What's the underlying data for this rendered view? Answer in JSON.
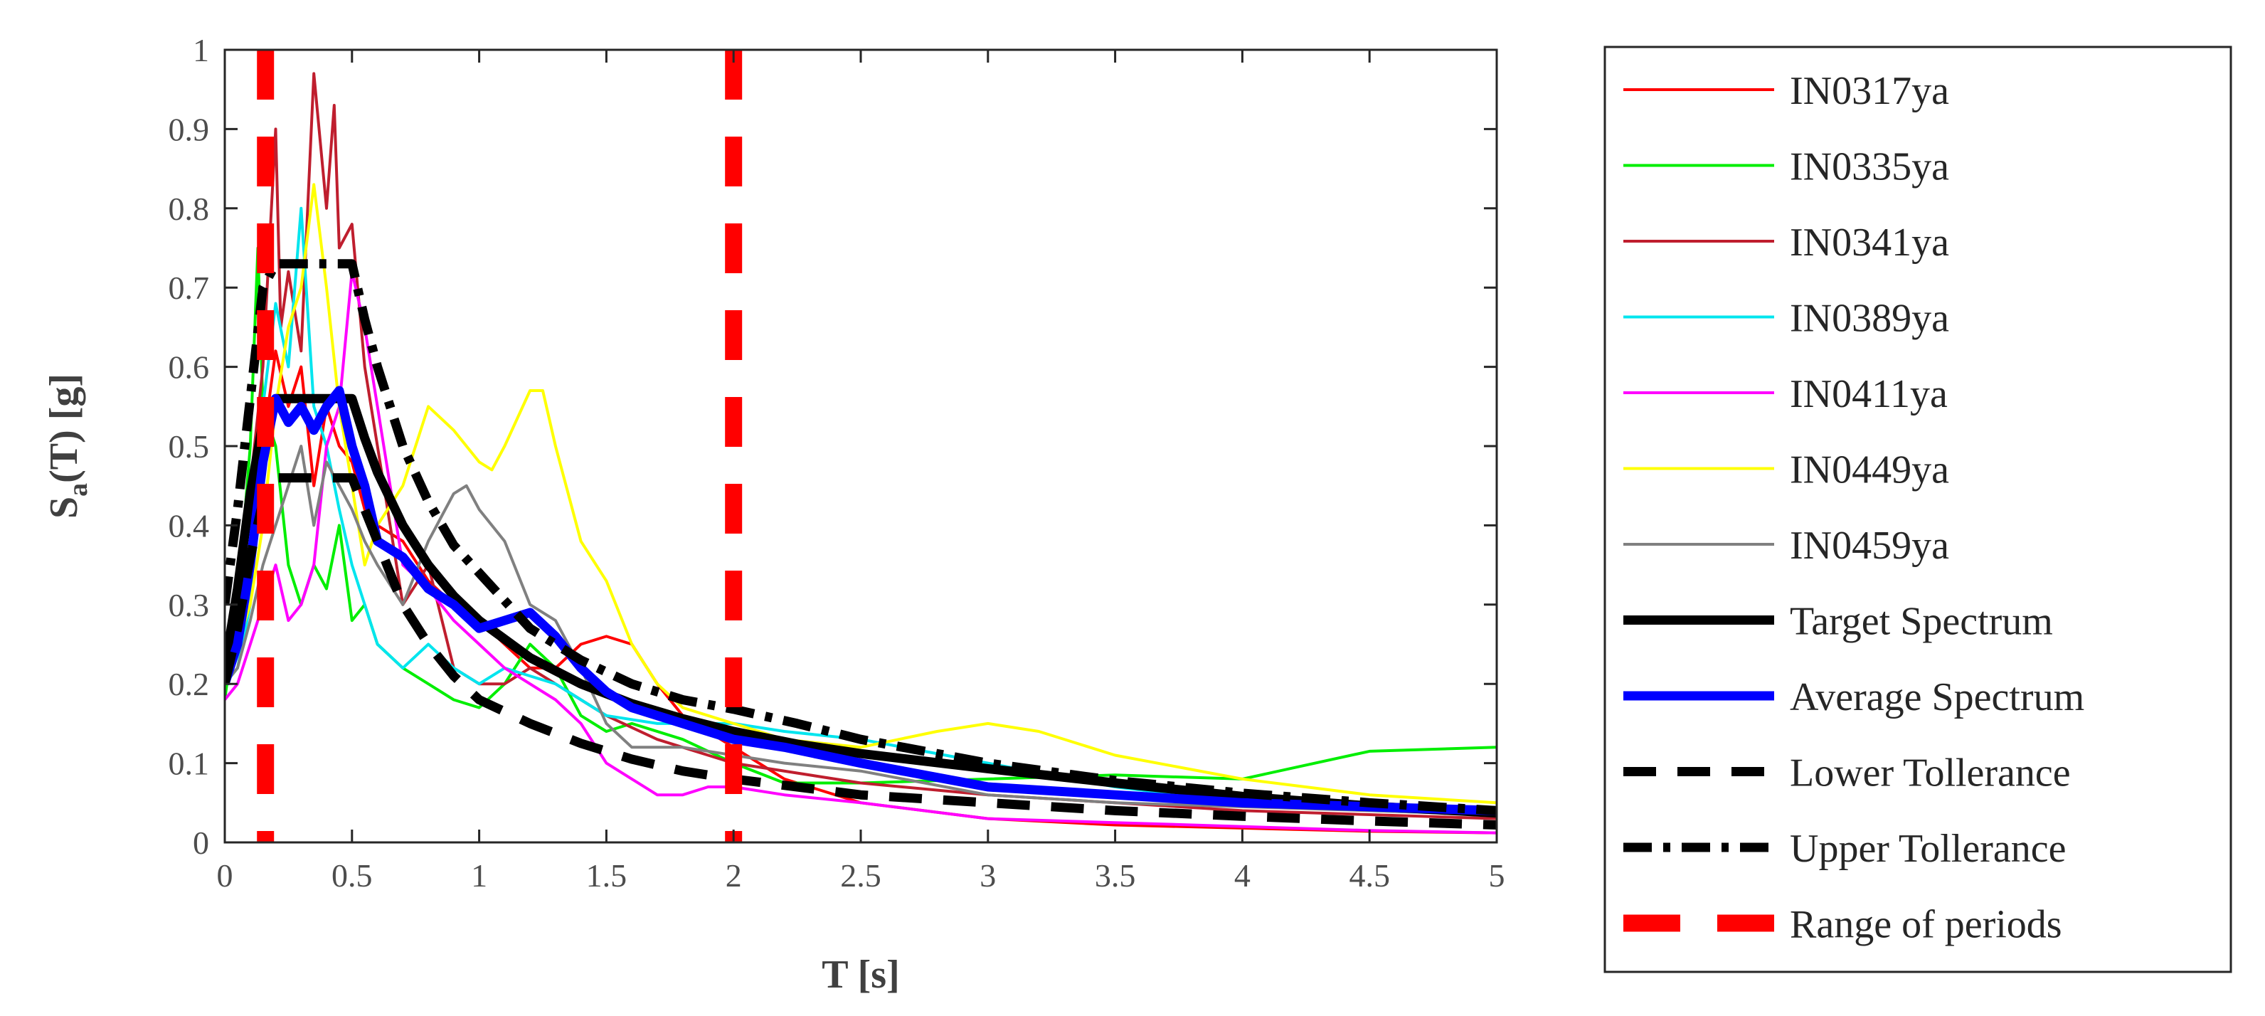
{
  "chart_data": {
    "type": "line",
    "xlabel": "T [s]",
    "ylabel_main": "S",
    "ylabel_sub": "a",
    "ylabel_rest": "(T) [g]",
    "xlim": [
      0,
      5
    ],
    "ylim": [
      0,
      1
    ],
    "x_ticks": [
      0,
      0.5,
      1,
      1.5,
      2,
      2.5,
      3,
      3.5,
      4,
      4.5,
      5
    ],
    "x_tick_labels": [
      "0",
      "0.5",
      "1",
      "1.5",
      "2",
      "2.5",
      "3",
      "3.5",
      "4",
      "4.5",
      "5"
    ],
    "y_ticks": [
      0,
      0.1,
      0.2,
      0.3,
      0.4,
      0.5,
      0.6,
      0.7,
      0.8,
      0.9,
      1
    ],
    "y_tick_labels": [
      "0",
      "0.1",
      "0.2",
      "0.3",
      "0.4",
      "0.5",
      "0.6",
      "0.7",
      "0.8",
      "0.9",
      "1"
    ],
    "grid": false,
    "legend_position": "outside-right",
    "series": [
      {
        "name": "IN0317ya",
        "color": "#ff0000",
        "style": "solid",
        "width": "thin",
        "x": [
          0,
          0.05,
          0.1,
          0.15,
          0.2,
          0.25,
          0.3,
          0.35,
          0.4,
          0.45,
          0.5,
          0.55,
          0.6,
          0.7,
          0.8,
          0.9,
          1.0,
          1.1,
          1.2,
          1.3,
          1.4,
          1.5,
          1.6,
          1.7,
          1.8,
          2.0,
          2.2,
          2.5,
          3.0,
          3.5,
          4.0,
          4.5,
          5.0
        ],
        "y": [
          0.2,
          0.25,
          0.35,
          0.5,
          0.62,
          0.55,
          0.6,
          0.45,
          0.55,
          0.5,
          0.48,
          0.42,
          0.4,
          0.38,
          0.33,
          0.3,
          0.28,
          0.25,
          0.22,
          0.22,
          0.25,
          0.26,
          0.25,
          0.2,
          0.16,
          0.12,
          0.08,
          0.05,
          0.03,
          0.022,
          0.018,
          0.014,
          0.012
        ]
      },
      {
        "name": "IN0335ya",
        "color": "#00ee00",
        "style": "solid",
        "width": "thin",
        "x": [
          0,
          0.05,
          0.1,
          0.13,
          0.15,
          0.2,
          0.25,
          0.3,
          0.35,
          0.4,
          0.45,
          0.5,
          0.55,
          0.6,
          0.7,
          0.8,
          0.9,
          1.0,
          1.1,
          1.2,
          1.3,
          1.4,
          1.5,
          1.6,
          1.8,
          2.0,
          2.2,
          2.5,
          3.0,
          3.5,
          4.0,
          4.5,
          5.0
        ],
        "y": [
          0.18,
          0.3,
          0.5,
          0.75,
          0.55,
          0.5,
          0.35,
          0.3,
          0.35,
          0.32,
          0.4,
          0.28,
          0.3,
          0.25,
          0.22,
          0.2,
          0.18,
          0.17,
          0.2,
          0.25,
          0.22,
          0.16,
          0.14,
          0.15,
          0.13,
          0.1,
          0.075,
          0.075,
          0.08,
          0.085,
          0.08,
          0.115,
          0.12
        ]
      },
      {
        "name": "IN0341ya",
        "color": "#bf1e2e",
        "style": "solid",
        "width": "thin",
        "x": [
          0,
          0.05,
          0.1,
          0.15,
          0.2,
          0.22,
          0.25,
          0.3,
          0.35,
          0.4,
          0.43,
          0.45,
          0.5,
          0.55,
          0.6,
          0.7,
          0.8,
          0.9,
          1.0,
          1.1,
          1.2,
          1.3,
          1.4,
          1.5,
          1.7,
          2.0,
          2.5,
          3.0,
          3.5,
          4.0,
          4.5,
          5.0
        ],
        "y": [
          0.2,
          0.3,
          0.45,
          0.6,
          0.9,
          0.65,
          0.72,
          0.62,
          0.97,
          0.8,
          0.93,
          0.75,
          0.78,
          0.6,
          0.5,
          0.3,
          0.35,
          0.22,
          0.2,
          0.2,
          0.22,
          0.2,
          0.18,
          0.16,
          0.13,
          0.1,
          0.075,
          0.06,
          0.05,
          0.04,
          0.035,
          0.03
        ]
      },
      {
        "name": "IN0389ya",
        "color": "#00e5ee",
        "style": "solid",
        "width": "thin",
        "x": [
          0,
          0.05,
          0.1,
          0.15,
          0.2,
          0.25,
          0.3,
          0.35,
          0.4,
          0.45,
          0.5,
          0.55,
          0.6,
          0.7,
          0.8,
          0.9,
          1.0,
          1.1,
          1.2,
          1.3,
          1.4,
          1.5,
          1.7,
          1.9,
          2.0,
          2.2,
          2.5,
          3.0,
          3.5,
          4.0,
          4.5,
          5.0
        ],
        "y": [
          0.2,
          0.22,
          0.3,
          0.55,
          0.68,
          0.6,
          0.8,
          0.55,
          0.5,
          0.42,
          0.35,
          0.3,
          0.25,
          0.22,
          0.25,
          0.22,
          0.2,
          0.22,
          0.21,
          0.2,
          0.18,
          0.16,
          0.15,
          0.15,
          0.15,
          0.14,
          0.13,
          0.1,
          0.07,
          0.05,
          0.04,
          0.035
        ]
      },
      {
        "name": "IN0411ya",
        "color": "#ff00ff",
        "style": "solid",
        "width": "thin",
        "x": [
          0,
          0.05,
          0.1,
          0.15,
          0.2,
          0.25,
          0.3,
          0.35,
          0.4,
          0.45,
          0.5,
          0.55,
          0.6,
          0.65,
          0.7,
          0.8,
          0.9,
          1.0,
          1.1,
          1.2,
          1.3,
          1.4,
          1.5,
          1.6,
          1.7,
          1.8,
          1.9,
          2.0,
          2.2,
          2.5,
          3.0,
          3.5,
          4.0,
          4.5,
          5.0
        ],
        "y": [
          0.18,
          0.2,
          0.25,
          0.3,
          0.35,
          0.28,
          0.3,
          0.35,
          0.5,
          0.55,
          0.72,
          0.65,
          0.55,
          0.45,
          0.35,
          0.32,
          0.28,
          0.25,
          0.22,
          0.2,
          0.18,
          0.15,
          0.1,
          0.08,
          0.06,
          0.06,
          0.07,
          0.07,
          0.06,
          0.05,
          0.03,
          0.025,
          0.02,
          0.015,
          0.012
        ]
      },
      {
        "name": "IN0449ya",
        "color": "#ffff00",
        "style": "solid",
        "width": "thin",
        "x": [
          0,
          0.05,
          0.1,
          0.15,
          0.2,
          0.25,
          0.3,
          0.35,
          0.4,
          0.45,
          0.5,
          0.55,
          0.6,
          0.7,
          0.8,
          0.9,
          1.0,
          1.05,
          1.1,
          1.2,
          1.25,
          1.3,
          1.4,
          1.5,
          1.6,
          1.7,
          1.8,
          2.0,
          2.2,
          2.5,
          2.8,
          3.0,
          3.2,
          3.5,
          4.0,
          4.5,
          5.0
        ],
        "y": [
          0.2,
          0.25,
          0.3,
          0.4,
          0.55,
          0.65,
          0.7,
          0.83,
          0.7,
          0.55,
          0.45,
          0.35,
          0.4,
          0.45,
          0.55,
          0.52,
          0.48,
          0.47,
          0.5,
          0.57,
          0.57,
          0.5,
          0.38,
          0.33,
          0.25,
          0.2,
          0.17,
          0.15,
          0.13,
          0.12,
          0.14,
          0.15,
          0.14,
          0.11,
          0.08,
          0.06,
          0.05
        ]
      },
      {
        "name": "IN0459ya",
        "color": "#808080",
        "style": "solid",
        "width": "thin",
        "x": [
          0,
          0.05,
          0.1,
          0.15,
          0.2,
          0.25,
          0.3,
          0.35,
          0.4,
          0.45,
          0.5,
          0.55,
          0.6,
          0.7,
          0.8,
          0.9,
          0.95,
          1.0,
          1.1,
          1.2,
          1.3,
          1.4,
          1.5,
          1.6,
          1.8,
          2.0,
          2.2,
          2.5,
          3.0,
          3.5,
          4.0,
          4.5,
          5.0
        ],
        "y": [
          0.2,
          0.22,
          0.28,
          0.35,
          0.4,
          0.45,
          0.5,
          0.4,
          0.48,
          0.45,
          0.42,
          0.38,
          0.35,
          0.3,
          0.38,
          0.44,
          0.45,
          0.42,
          0.38,
          0.3,
          0.28,
          0.22,
          0.15,
          0.12,
          0.12,
          0.11,
          0.1,
          0.09,
          0.06,
          0.05,
          0.045,
          0.04,
          0.035
        ]
      },
      {
        "name": "Target Spectrum",
        "color": "#000000",
        "style": "solid",
        "width": "thick",
        "x": [
          0,
          0.05,
          0.1,
          0.15,
          0.2,
          0.3,
          0.4,
          0.5,
          0.55,
          0.6,
          0.7,
          0.8,
          0.9,
          1.0,
          1.2,
          1.4,
          1.6,
          1.8,
          2.0,
          2.25,
          2.5,
          3.0,
          3.5,
          4.0,
          4.5,
          5.0
        ],
        "y": [
          0.22,
          0.32,
          0.44,
          0.53,
          0.56,
          0.56,
          0.56,
          0.56,
          0.51,
          0.467,
          0.4,
          0.35,
          0.311,
          0.28,
          0.233,
          0.2,
          0.175,
          0.156,
          0.14,
          0.124,
          0.112,
          0.093,
          0.075,
          0.058,
          0.046,
          0.037
        ]
      },
      {
        "name": "Average Spectrum",
        "color": "#0000ff",
        "style": "solid",
        "width": "thick",
        "x": [
          0,
          0.05,
          0.1,
          0.15,
          0.2,
          0.25,
          0.3,
          0.35,
          0.4,
          0.45,
          0.5,
          0.55,
          0.6,
          0.7,
          0.8,
          0.9,
          1.0,
          1.1,
          1.2,
          1.3,
          1.4,
          1.5,
          1.6,
          1.8,
          2.0,
          2.2,
          2.5,
          3.0,
          3.5,
          4.0,
          4.5,
          5.0
        ],
        "y": [
          0.2,
          0.25,
          0.35,
          0.48,
          0.56,
          0.53,
          0.55,
          0.52,
          0.55,
          0.57,
          0.5,
          0.45,
          0.38,
          0.36,
          0.32,
          0.3,
          0.27,
          0.28,
          0.29,
          0.26,
          0.22,
          0.19,
          0.17,
          0.15,
          0.13,
          0.12,
          0.1,
          0.07,
          0.06,
          0.05,
          0.045,
          0.04
        ]
      },
      {
        "name": "Lower Tollerance",
        "color": "#000000",
        "style": "dashed",
        "width": "thick",
        "x": [
          0,
          0.05,
          0.1,
          0.15,
          0.2,
          0.3,
          0.4,
          0.5,
          0.55,
          0.6,
          0.7,
          0.8,
          0.9,
          1.0,
          1.2,
          1.4,
          1.6,
          1.8,
          2.0,
          2.25,
          2.5,
          3.0,
          3.5,
          4.0,
          4.5,
          5.0
        ],
        "y": [
          0.2,
          0.27,
          0.36,
          0.43,
          0.46,
          0.46,
          0.46,
          0.46,
          0.42,
          0.38,
          0.3,
          0.25,
          0.21,
          0.18,
          0.15,
          0.125,
          0.105,
          0.09,
          0.08,
          0.07,
          0.06,
          0.05,
          0.04,
          0.033,
          0.027,
          0.022
        ]
      },
      {
        "name": "Upper Tollerance",
        "color": "#000000",
        "style": "dashdot",
        "width": "thick",
        "x": [
          0,
          0.05,
          0.1,
          0.15,
          0.2,
          0.3,
          0.4,
          0.5,
          0.55,
          0.6,
          0.7,
          0.8,
          0.9,
          1.0,
          1.2,
          1.4,
          1.6,
          1.8,
          2.0,
          2.25,
          2.5,
          3.0,
          3.5,
          4.0,
          4.5,
          5.0
        ],
        "y": [
          0.3,
          0.42,
          0.56,
          0.7,
          0.73,
          0.73,
          0.73,
          0.73,
          0.66,
          0.6,
          0.5,
          0.43,
          0.375,
          0.34,
          0.27,
          0.23,
          0.2,
          0.18,
          0.168,
          0.15,
          0.13,
          0.1,
          0.078,
          0.062,
          0.05,
          0.04
        ]
      }
    ],
    "range_of_periods": {
      "name": "Range of periods",
      "color": "#ff0000",
      "x": [
        0.16,
        2.0
      ]
    }
  }
}
